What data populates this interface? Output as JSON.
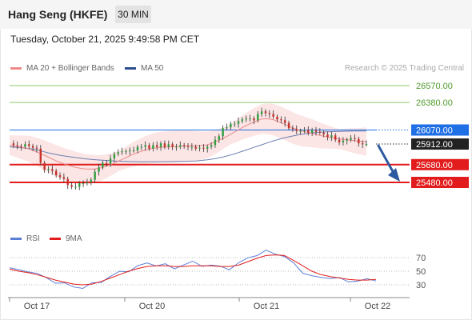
{
  "header": {
    "title": "Hang Seng (HKFE)",
    "timeframe": "30 MIN"
  },
  "datetime": "Tuesday, October 21, 2025 9:49:58 PM CET",
  "legend": {
    "items": [
      {
        "label": "MA 20 + Bollinger Bands",
        "color": "#ee8a8a"
      },
      {
        "label": "MA 50",
        "color": "#2b4f8c"
      }
    ],
    "credit": "Research © 2025 Trading Central"
  },
  "rsi_legend": {
    "items": [
      {
        "label": "RSI",
        "color": "#5b7fd6"
      },
      {
        "label": "9MA",
        "color": "#e21c1c"
      }
    ]
  },
  "chart_data": [
    {
      "type": "candlestick",
      "ylim": [
        25300,
        26700
      ],
      "current_price": 25912.0,
      "price_levels": [
        {
          "value": 26570.0,
          "label": "26570.00",
          "kind": "resistance",
          "color": "#8fc86b"
        },
        {
          "value": 26380.0,
          "label": "26380.00",
          "kind": "resistance",
          "color": "#8fc86b"
        },
        {
          "value": 26070.0,
          "label": "26070.00",
          "kind": "pivot",
          "color": "#1f6fe5"
        },
        {
          "value": 25912.0,
          "label": "25912.00",
          "kind": "last",
          "color": "#222222"
        },
        {
          "value": 25680.0,
          "label": "25680.00",
          "kind": "support",
          "color": "#e21c1c"
        },
        {
          "value": 25480.0,
          "label": "25480.00",
          "kind": "support",
          "color": "#e21c1c"
        }
      ],
      "close_path": [
        25920,
        25900,
        25890,
        25880,
        25910,
        25890,
        25870,
        25860,
        25700,
        25620,
        25630,
        25610,
        25560,
        25540,
        25520,
        25450,
        25430,
        25430,
        25470,
        25470,
        25480,
        25510,
        25600,
        25650,
        25700,
        25690,
        25750,
        25800,
        25820,
        25830,
        25830,
        25840,
        25840,
        25880,
        25880,
        25900,
        25860,
        25900,
        25880,
        25920,
        25880,
        25910,
        25880,
        25880,
        25900,
        25890,
        25880,
        25880,
        25860,
        25870,
        25860,
        25880,
        25900,
        25960,
        26000,
        26090,
        26100,
        26140,
        26140,
        26170,
        26190,
        26200,
        26200,
        26180,
        26250,
        26280,
        26260,
        26250,
        26220,
        26190,
        26180,
        26150,
        26090,
        26080,
        26060,
        26060,
        26070,
        26040,
        26070,
        26050,
        26040,
        26020,
        25990,
        26010,
        25960,
        25930,
        25950,
        25960,
        25980,
        25970,
        25920,
        25910,
        25912
      ],
      "ma20": [
        25900,
        25880,
        25860,
        25820,
        25770,
        25720,
        25680,
        25650,
        25630,
        25630,
        25650,
        25690,
        25740,
        25790,
        25830,
        25860,
        25875,
        25880,
        25885,
        25890,
        25893,
        25900,
        25940,
        25990,
        26050,
        26110,
        26160,
        26200,
        26190,
        26150,
        26100,
        26060,
        26040,
        26010,
        25990,
        25970,
        25960,
        25945,
        25940
      ],
      "ma50": [
        25880,
        25870,
        25850,
        25810,
        25780,
        25760,
        25740,
        25730,
        25720,
        25715,
        25712,
        25712,
        25714,
        25716,
        25720,
        25735,
        25760,
        25800,
        25850,
        25900,
        25950,
        25990,
        26020,
        26040,
        26050,
        26055,
        26058,
        26060
      ],
      "x_ticks": [
        "Oct 17",
        "Oct 20",
        "Oct 21",
        "Oct 22"
      ]
    },
    {
      "type": "line",
      "title": "RSI",
      "ylim": [
        20,
        80
      ],
      "y_ticks": [
        70,
        50,
        30
      ],
      "series": [
        {
          "name": "RSI",
          "color": "#5b7fd6",
          "values": [
            55,
            50,
            52,
            45,
            40,
            35,
            30,
            28,
            26,
            30,
            36,
            42,
            48,
            52,
            56,
            62,
            60,
            58,
            55,
            60,
            62,
            60,
            58,
            56,
            55,
            60,
            70,
            75,
            78,
            77,
            72,
            60,
            50,
            42,
            40,
            42,
            38,
            35,
            37,
            36,
            38
          ]
        },
        {
          "name": "9MA",
          "color": "#e21c1c",
          "values": [
            53,
            50,
            48,
            45,
            41,
            37,
            34,
            31,
            30,
            31,
            35,
            40,
            45,
            50,
            54,
            57,
            58,
            58,
            57,
            57,
            58,
            58,
            58,
            57,
            57,
            59,
            64,
            69,
            73,
            74,
            73,
            66,
            58,
            50,
            45,
            42,
            40,
            38,
            37,
            37,
            38
          ]
        }
      ]
    }
  ]
}
